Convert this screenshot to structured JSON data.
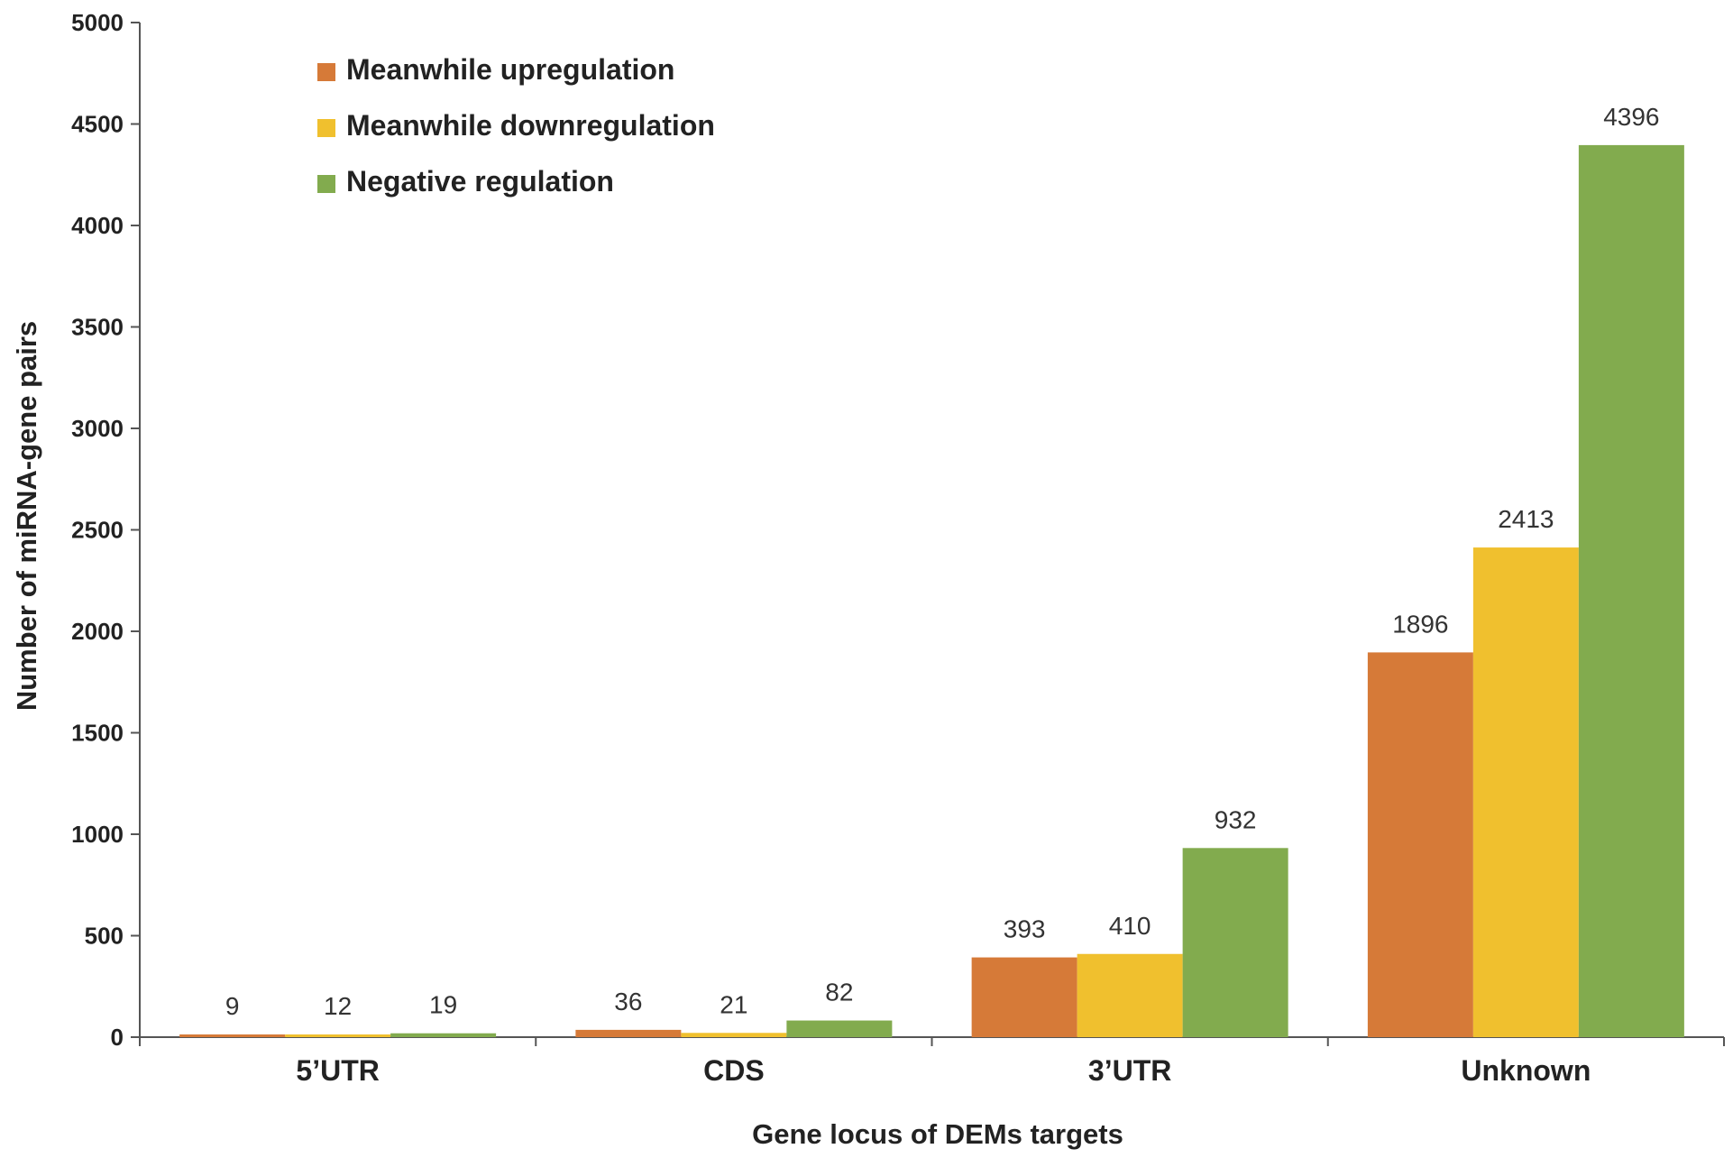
{
  "chart_data": {
    "type": "bar",
    "categories": [
      "5’UTR",
      "CDS",
      "3’UTR",
      "Unknown"
    ],
    "series": [
      {
        "name": "Meanwhile upregulation",
        "color": "#D67A38",
        "values": [
          9,
          36,
          393,
          1896
        ]
      },
      {
        "name": "Meanwhile downregulation",
        "color": "#F0C02E",
        "values": [
          12,
          21,
          410,
          2413
        ]
      },
      {
        "name": "Negative regulation",
        "color": "#82AB4E",
        "values": [
          19,
          82,
          932,
          4396
        ]
      }
    ],
    "xlabel": "Gene locus of DEMs targets",
    "ylabel": "Number of miRNA-gene pairs",
    "ylim": [
      0,
      5000
    ],
    "yticks": [
      0,
      500,
      1000,
      1500,
      2000,
      2500,
      3000,
      3500,
      4000,
      4500,
      5000
    ],
    "legend_position": "top-left",
    "grid": false
  }
}
